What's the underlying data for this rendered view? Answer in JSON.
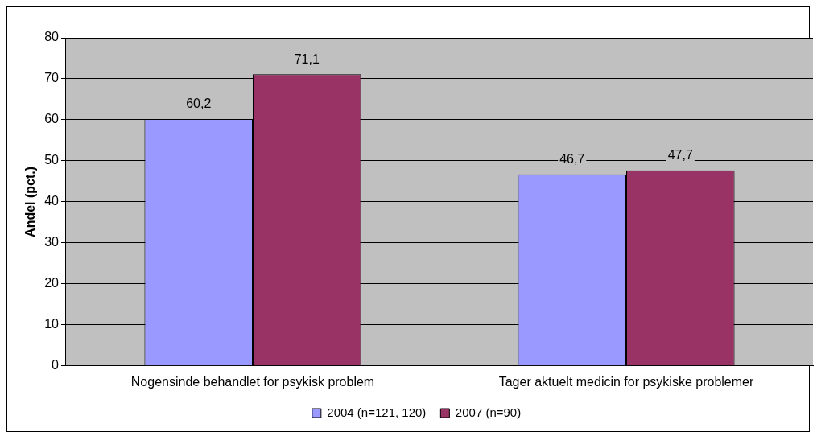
{
  "chart_data": {
    "type": "bar",
    "ylabel": "Andel (pct.)",
    "categories": [
      "Nogensinde behandlet for psykisk problem",
      "Tager aktuelt medicin for psykiske problemer"
    ],
    "series": [
      {
        "name": "2004 (n=121, 120)",
        "color": "#9999ff",
        "values": [
          60.2,
          46.7
        ],
        "value_labels": [
          "60,2",
          "46,7"
        ]
      },
      {
        "name": "2007 (n=90)",
        "color": "#993366",
        "values": [
          71.1,
          47.7
        ],
        "value_labels": [
          "71,1",
          "47,7"
        ]
      }
    ],
    "ylim": [
      0,
      80
    ],
    "yticks": [
      0,
      10,
      20,
      30,
      40,
      50,
      60,
      70,
      80
    ],
    "grid": "y",
    "legend": "bottom"
  }
}
